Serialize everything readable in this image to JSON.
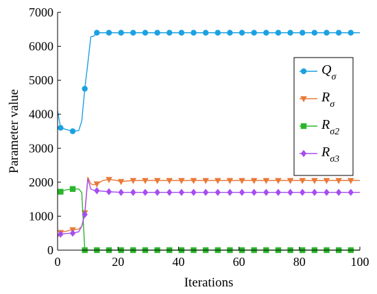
{
  "chart_data": {
    "type": "line",
    "xlabel": "Iterations",
    "ylabel": "Parameter value",
    "xlim": [
      0,
      100
    ],
    "ylim": [
      0,
      7000
    ],
    "x_ticks": [
      0,
      20,
      40,
      60,
      80,
      100
    ],
    "y_ticks": [
      0,
      1000,
      2000,
      3000,
      4000,
      5000,
      6000,
      7000
    ],
    "grid": false,
    "legend_position": "right",
    "series": [
      {
        "name_main": "Q",
        "name_sub": "σ",
        "name": "Qσ",
        "color": "#1ba1e2",
        "marker": "circle",
        "points": [
          [
            0,
            4100
          ],
          [
            1,
            3600
          ],
          [
            3,
            3550
          ],
          [
            5,
            3500
          ],
          [
            7,
            3520
          ],
          [
            8,
            3800
          ],
          [
            9,
            4750
          ],
          [
            10,
            5500
          ],
          [
            11,
            6280
          ],
          [
            12,
            6300
          ],
          [
            13,
            6400
          ],
          [
            15,
            6400
          ],
          [
            100,
            6400
          ]
        ],
        "marker_x": [
          1,
          5,
          9,
          13,
          17,
          21,
          25,
          29,
          33,
          37,
          41,
          45,
          49,
          53,
          57,
          61,
          65,
          69,
          73,
          77,
          81,
          85,
          89,
          93,
          97
        ]
      },
      {
        "name_main": "R",
        "name_sub": "σ",
        "name": "Rσ",
        "color": "#e87a3a",
        "marker": "triangle-down",
        "points": [
          [
            0,
            380
          ],
          [
            1,
            520
          ],
          [
            3,
            560
          ],
          [
            5,
            600
          ],
          [
            7,
            620
          ],
          [
            8,
            700
          ],
          [
            9,
            1100
          ],
          [
            10,
            2150
          ],
          [
            11,
            1950
          ],
          [
            12,
            1920
          ],
          [
            13,
            1950
          ],
          [
            15,
            2050
          ],
          [
            17,
            2080
          ],
          [
            19,
            2060
          ],
          [
            21,
            2020
          ],
          [
            25,
            2050
          ],
          [
            100,
            2050
          ]
        ],
        "marker_x": [
          1,
          5,
          9,
          13,
          17,
          21,
          25,
          29,
          33,
          37,
          41,
          45,
          49,
          53,
          57,
          61,
          65,
          69,
          73,
          77,
          81,
          85,
          89,
          93,
          97
        ]
      },
      {
        "name_main": "R",
        "name_sub": "σ2",
        "name": "Rσ2",
        "color": "#2bb52b",
        "marker": "square",
        "points": [
          [
            0,
            1650
          ],
          [
            1,
            1720
          ],
          [
            3,
            1780
          ],
          [
            5,
            1800
          ],
          [
            7,
            1800
          ],
          [
            8,
            1700
          ],
          [
            9,
            0
          ],
          [
            100,
            0
          ]
        ],
        "marker_x": [
          1,
          5,
          9,
          13,
          17,
          21,
          25,
          29,
          33,
          37,
          41,
          45,
          49,
          53,
          57,
          61,
          65,
          69,
          73,
          77,
          81,
          85,
          89,
          93,
          97
        ]
      },
      {
        "name_main": "R",
        "name_sub": "σ3",
        "name": "Rσ3",
        "color": "#a64df0",
        "marker": "diamond",
        "points": [
          [
            0,
            430
          ],
          [
            1,
            470
          ],
          [
            3,
            490
          ],
          [
            5,
            500
          ],
          [
            7,
            540
          ],
          [
            8,
            700
          ],
          [
            9,
            1050
          ],
          [
            10,
            2100
          ],
          [
            11,
            1800
          ],
          [
            12,
            1760
          ],
          [
            13,
            1750
          ],
          [
            17,
            1720
          ],
          [
            21,
            1700
          ],
          [
            100,
            1700
          ]
        ],
        "marker_x": [
          1,
          5,
          9,
          13,
          17,
          21,
          25,
          29,
          33,
          37,
          41,
          45,
          49,
          53,
          57,
          61,
          65,
          69,
          73,
          77,
          81,
          85,
          89,
          93,
          97
        ]
      }
    ]
  }
}
